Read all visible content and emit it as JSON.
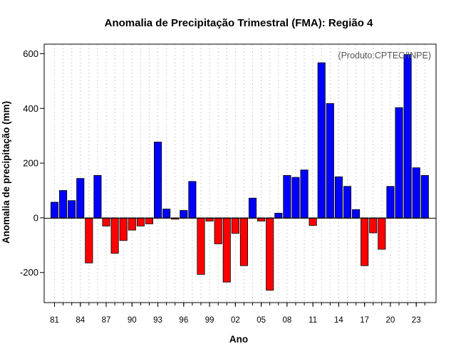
{
  "chart_data": {
    "type": "bar",
    "title": "Anomalia de Precipitação Trimestral (FMA): Região 4",
    "xlabel": "Ano",
    "ylabel": "Anomalia de precipitação (mm)",
    "annotation": "(Produto:CPTEC/INPE)",
    "years": [
      1981,
      1982,
      1983,
      1984,
      1985,
      1986,
      1987,
      1988,
      1989,
      1990,
      1991,
      1992,
      1993,
      1994,
      1995,
      1996,
      1997,
      1998,
      1999,
      2000,
      2001,
      2002,
      2003,
      2004,
      2005,
      2006,
      2007,
      2008,
      2009,
      2010,
      2011,
      2012,
      2013,
      2014,
      2015,
      2016,
      2017,
      2018,
      2019,
      2020,
      2021,
      2022,
      2023,
      2024
    ],
    "values": [
      57,
      100,
      63,
      144,
      -165,
      155,
      -30,
      -130,
      -83,
      -45,
      -30,
      -22,
      277,
      32,
      -5,
      27,
      133,
      -207,
      -12,
      -95,
      -235,
      -57,
      -175,
      72,
      -12,
      -265,
      17,
      155,
      148,
      175,
      -28,
      567,
      418,
      150,
      115,
      30,
      -175,
      -55,
      -115,
      115,
      403,
      597,
      183,
      155
    ],
    "xticks": [
      "81",
      "84",
      "87",
      "90",
      "93",
      "96",
      "99",
      "02",
      "05",
      "08",
      "11",
      "14",
      "17",
      "20",
      "23"
    ],
    "xtick_years": [
      1981,
      1984,
      1987,
      1990,
      1993,
      1996,
      1999,
      2002,
      2005,
      2008,
      2011,
      2014,
      2017,
      2020,
      2023
    ],
    "yticks": [
      "-200",
      "0",
      "200",
      "400",
      "600"
    ],
    "ytick_values": [
      -200,
      0,
      200,
      400,
      600
    ],
    "ylim": [
      -310,
      635
    ],
    "xlim": [
      1979.8,
      2025.3
    ],
    "positive_color": "#0000ff",
    "negative_color": "#ff0000"
  }
}
